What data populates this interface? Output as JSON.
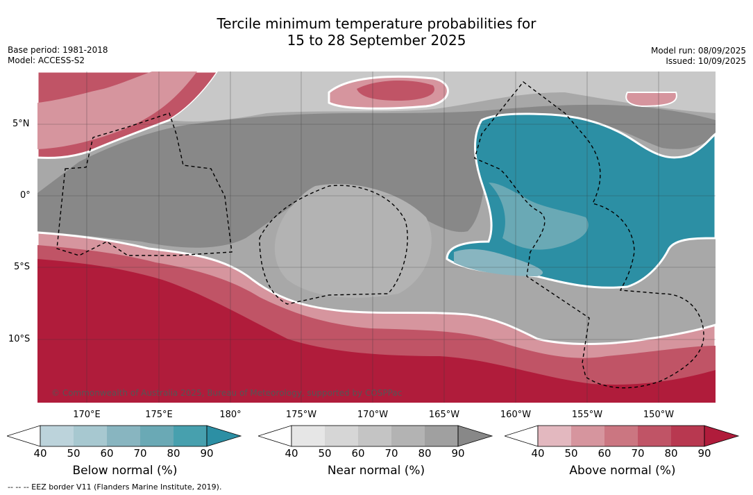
{
  "title_line1": "Tercile minimum temperature probabilities for",
  "title_line2": "15 to 28 September 2025",
  "base_period": "Base period: 1981-2018",
  "model": "Model: ACCESS-S2",
  "model_run": "Model run: 08/09/2025",
  "issued": "Issued: 10/09/2025",
  "copyright": "© Commonwealth of Australia 2025, Bureau of Meteorology, supported by COSPPac",
  "footer_note": "--  --  -- EEZ border V11 (Flanders Marine Institute, 2019).",
  "lat_labels": [
    "5°N",
    "0°",
    "5°S",
    "10°S"
  ],
  "lon_labels": [
    "170°E",
    "175°E",
    "180°",
    "175°W",
    "170°W",
    "165°W",
    "160°W",
    "155°W",
    "150°W"
  ],
  "colorbars": [
    {
      "label": "Below normal (%)",
      "ticks": [
        "40",
        "50",
        "60",
        "70",
        "80",
        "90"
      ],
      "colors": [
        "#bcd3db",
        "#a7c8d0",
        "#88b5c0",
        "#6aa9b5",
        "#47a0ae",
        "#2c8fa4"
      ]
    },
    {
      "label": "Near normal (%)",
      "ticks": [
        "40",
        "50",
        "60",
        "70",
        "80",
        "90"
      ],
      "colors": [
        "#e6e6e6",
        "#d6d6d6",
        "#c4c4c4",
        "#b3b3b3",
        "#a0a0a0",
        "#888888"
      ]
    },
    {
      "label": "Above normal (%)",
      "ticks": [
        "40",
        "50",
        "60",
        "70",
        "80",
        "90"
      ],
      "colors": [
        "#e3b8bf",
        "#d6959e",
        "#cb7681",
        "#c05466",
        "#b83850",
        "#b01c3b"
      ]
    }
  ],
  "map_colors": {
    "above_strong": "#b01c3b",
    "above_mid": "#c05466",
    "above_weak": "#d6959e",
    "near_strong": "#888888",
    "near_mid": "#a8a8a8",
    "near_weak": "#d0d0d0",
    "below_strong": "#2c8fa4",
    "below_mid": "#6aa9b5",
    "below_weak": "#bcd3db"
  }
}
